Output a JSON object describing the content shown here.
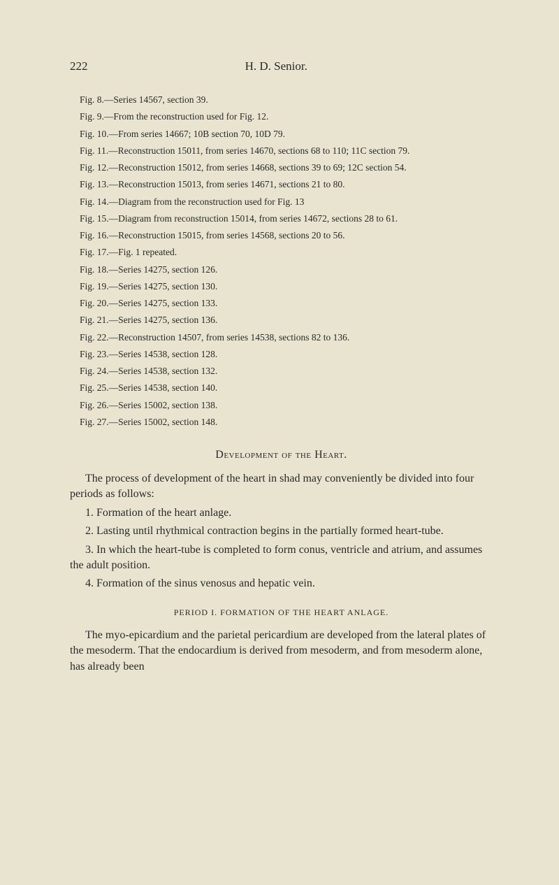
{
  "header": {
    "page_number": "222",
    "author": "H. D. Senior."
  },
  "figs": [
    "Fig. 8.—Series 14567, section 39.",
    "Fig. 9.—From the reconstruction used for Fig. 12.",
    "Fig. 10.—From series 14667; 10B section 70, 10D 79.",
    "Fig. 11.—Reconstruction 15011, from series 14670, sections 68 to 110; 11C section 79.",
    "Fig. 12.—Reconstruction 15012, from series 14668, sections 39 to 69; 12C section 54.",
    "Fig. 13.—Reconstruction 15013, from series 14671, sections 21 to 80.",
    "Fig. 14.—Diagram from the reconstruction used for Fig. 13",
    "Fig. 15.—Diagram from reconstruction 15014, from series 14672, sections 28 to 61.",
    "Fig. 16.—Reconstruction 15015, from series 14568, sections 20 to 56.",
    "Fig. 17.—Fig. 1 repeated.",
    "Fig. 18.—Series 14275, section 126.",
    "Fig. 19.—Series 14275, section 130.",
    "Fig. 20.—Series 14275, section 133.",
    "Fig. 21.—Series 14275, section 136.",
    "Fig. 22.—Reconstruction 14507, from series 14538, sections 82 to 136.",
    "Fig. 23.—Series 14538, section 128.",
    "Fig. 24.—Series 14538, section 132.",
    "Fig. 25.—Series 14538, section 140.",
    "Fig. 26.—Series 15002, section 138.",
    "Fig. 27.—Series 15002, section 148."
  ],
  "section_heading": "Development of the Heart.",
  "body": {
    "p1": "The process of development of the heart in shad may conveniently be divided into four periods as follows:",
    "p2": "1. Formation of the heart anlage.",
    "p3": "2. Lasting until rhythmical contraction begins in the partially formed heart-tube.",
    "p4": "3. In which the heart-tube is completed to form conus, ventricle and atrium, and assumes the adult position.",
    "p5": "4. Formation of the sinus venosus and hepatic vein."
  },
  "sub_heading": "PERIOD I.   FORMATION OF THE HEART ANLAGE.",
  "body2": {
    "p1": "The myo-epicardium and the parietal pericardium are developed from the lateral plates of the mesoderm. That the endocardium is derived from mesoderm, and from mesoderm alone, has already been"
  }
}
